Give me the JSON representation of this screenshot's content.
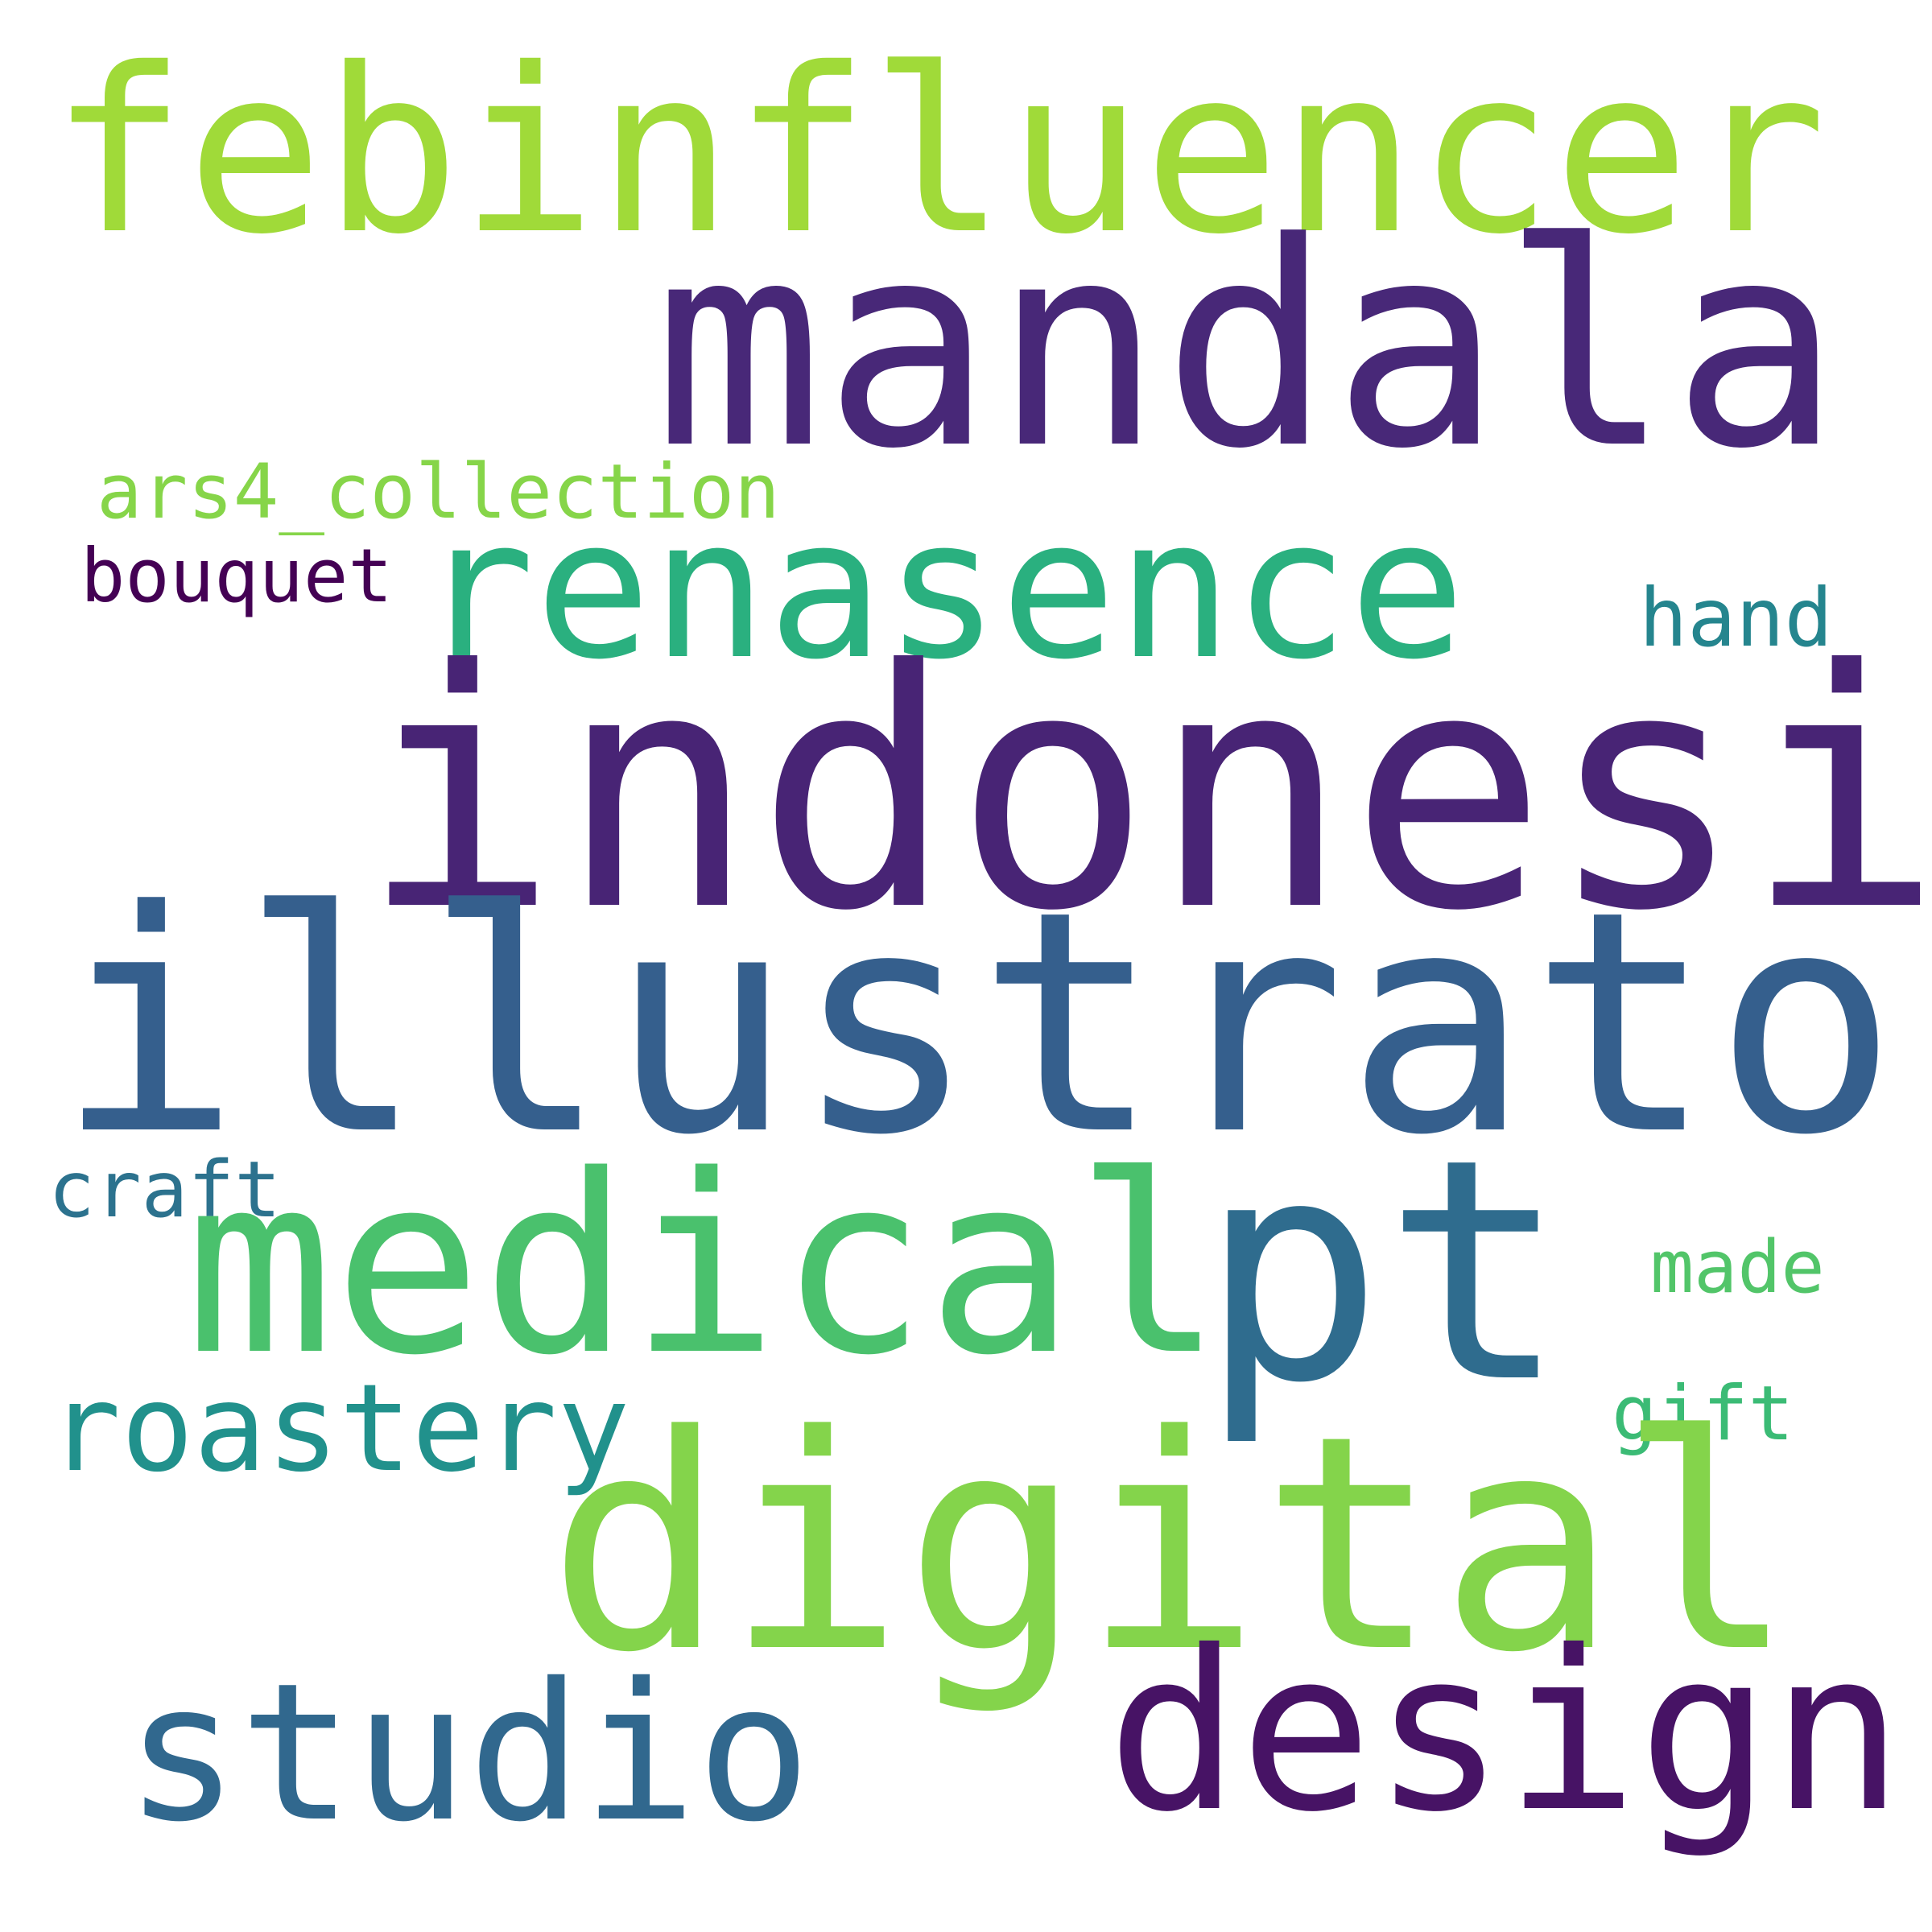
{
  "words": [
    {
      "text": "febinfluencer",
      "color": "#a0da39"
    },
    {
      "text": "mandala",
      "color": "#482878"
    },
    {
      "text": "ars4_collection",
      "color": "#86d549"
    },
    {
      "text": "renasence",
      "color": "#2ab07f"
    },
    {
      "text": "bouquet",
      "color": "#440154"
    },
    {
      "text": "hand",
      "color": "#25858e"
    },
    {
      "text": "indonesia",
      "color": "#482475"
    },
    {
      "text": "illustrator",
      "color": "#355f8d"
    },
    {
      "text": "craft",
      "color": "#2c728e"
    },
    {
      "text": "medical",
      "color": "#4ac16d"
    },
    {
      "text": "pt",
      "color": "#2f6c8e"
    },
    {
      "text": "made",
      "color": "#52c569"
    },
    {
      "text": "roastery",
      "color": "#21918c"
    },
    {
      "text": "gift",
      "color": "#3bbb75"
    },
    {
      "text": "digital",
      "color": "#84d44b"
    },
    {
      "text": "studio",
      "color": "#31688e"
    },
    {
      "text": "design",
      "color": "#471365"
    }
  ]
}
